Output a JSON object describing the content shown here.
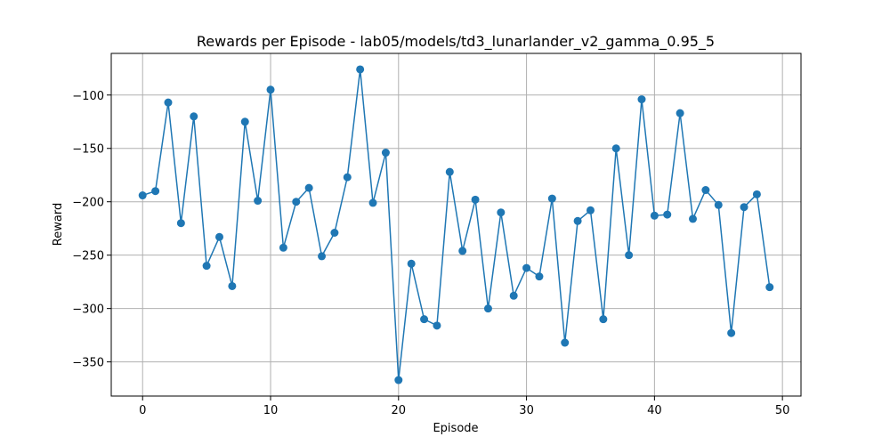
{
  "chart_data": {
    "type": "line",
    "title": "Rewards per Episode - lab05/models/td3_lunarlander_v2_gamma_0.95_5",
    "xlabel": "Episode",
    "ylabel": "Reward",
    "xlim": [
      -2.45,
      51.45
    ],
    "ylim": [
      -382,
      -61
    ],
    "xticks": [
      0,
      10,
      20,
      30,
      40,
      50
    ],
    "yticks": [
      -350,
      -300,
      -250,
      -200,
      -150,
      -100
    ],
    "ytick_labels": [
      "−350",
      "−300",
      "−250",
      "−200",
      "−150",
      "−100"
    ],
    "grid": true,
    "color": "#1f77b4",
    "marker": "circle",
    "series": [
      {
        "x": [
          0,
          1,
          2,
          3,
          4,
          5,
          6,
          7,
          8,
          9,
          10,
          11,
          12,
          13,
          14,
          15,
          16,
          17,
          18,
          19,
          20,
          21,
          22,
          23,
          24,
          25,
          26,
          27,
          28,
          29,
          30,
          31,
          32,
          33,
          34,
          35,
          36,
          37,
          38,
          39,
          40,
          41,
          42,
          43,
          44,
          45,
          46,
          47,
          48,
          49
        ],
        "values": [
          -194,
          -190,
          -107,
          -220,
          -120,
          -260,
          -233,
          -279,
          -125,
          -199,
          -95,
          -243,
          -200,
          -187,
          -251,
          -229,
          -177,
          -76,
          -201,
          -154,
          -367,
          -258,
          -310,
          -316,
          -172,
          -246,
          -198,
          -300,
          -210,
          -288,
          -262,
          -270,
          -197,
          -332,
          -218,
          -208,
          -310,
          -150,
          -250,
          -104,
          -213,
          -212,
          -117,
          -216,
          -189,
          -203,
          -323,
          -205,
          -193,
          -280
        ]
      }
    ]
  }
}
